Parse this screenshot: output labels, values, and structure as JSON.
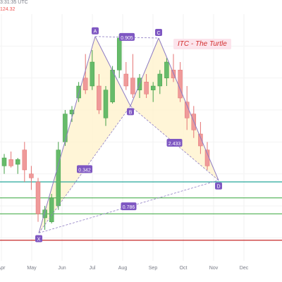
{
  "header": {
    "timestamp": "3:31:35 UTC",
    "price_fragment": "124.32"
  },
  "title_tag": "ITC - The Turtle",
  "colors": {
    "up": "#66bb6a",
    "down": "#ef9a9a",
    "pattern_fill": "#fff3cd",
    "pattern_line": "#8e7cc3",
    "label_bg": "#7e57c2",
    "teal": "#26a69a",
    "green": "#4caf50",
    "red": "#c62828"
  },
  "chart_data": {
    "type": "candlestick",
    "title": "ITC - The Turtle",
    "x_ticks": [
      "Apr",
      "May",
      "Jun",
      "Jul",
      "Aug",
      "Sep",
      "Oct",
      "Nov",
      "Dec"
    ],
    "candles": [
      {
        "open": 170,
        "high": 185,
        "low": 160,
        "close": 180
      },
      {
        "open": 178,
        "high": 188,
        "low": 168,
        "close": 170
      },
      {
        "open": 172,
        "high": 180,
        "low": 160,
        "close": 178
      },
      {
        "open": 190,
        "high": 200,
        "low": 150,
        "close": 165
      },
      {
        "open": 160,
        "high": 170,
        "low": 140,
        "close": 155
      },
      {
        "open": 150,
        "high": 155,
        "low": 100,
        "close": 110
      },
      {
        "open": 105,
        "high": 120,
        "low": 90,
        "close": 115
      },
      {
        "open": 100,
        "high": 135,
        "low": 98,
        "close": 130
      },
      {
        "open": 120,
        "high": 200,
        "low": 115,
        "close": 190
      },
      {
        "open": 200,
        "high": 240,
        "low": 195,
        "close": 235
      },
      {
        "open": 235,
        "high": 245,
        "low": 225,
        "close": 240
      },
      {
        "open": 255,
        "high": 275,
        "low": 250,
        "close": 270
      },
      {
        "open": 280,
        "high": 310,
        "low": 260,
        "close": 265
      },
      {
        "open": 270,
        "high": 315,
        "low": 265,
        "close": 300
      },
      {
        "open": 270,
        "high": 285,
        "low": 235,
        "close": 240
      },
      {
        "open": 230,
        "high": 270,
        "low": 220,
        "close": 265
      },
      {
        "open": 250,
        "high": 295,
        "low": 248,
        "close": 290
      },
      {
        "open": 290,
        "high": 335,
        "low": 280,
        "close": 330
      },
      {
        "open": 285,
        "high": 300,
        "low": 265,
        "close": 270
      },
      {
        "open": 280,
        "high": 310,
        "low": 255,
        "close": 260
      },
      {
        "open": 265,
        "high": 285,
        "low": 255,
        "close": 280
      },
      {
        "open": 275,
        "high": 285,
        "low": 255,
        "close": 260
      },
      {
        "open": 265,
        "high": 275,
        "low": 250,
        "close": 270
      },
      {
        "open": 270,
        "high": 290,
        "low": 260,
        "close": 285
      },
      {
        "open": 280,
        "high": 305,
        "low": 270,
        "close": 300
      },
      {
        "open": 290,
        "high": 310,
        "low": 275,
        "close": 280
      },
      {
        "open": 290,
        "high": 300,
        "low": 250,
        "close": 255
      },
      {
        "open": 250,
        "high": 270,
        "low": 215,
        "close": 230
      },
      {
        "open": 235,
        "high": 245,
        "low": 205,
        "close": 215
      },
      {
        "open": 210,
        "high": 225,
        "low": 185,
        "close": 195
      },
      {
        "open": 190,
        "high": 200,
        "low": 165,
        "close": 170
      }
    ],
    "harmonic_pattern": {
      "points": [
        {
          "label": "X",
          "time": 5.5,
          "price": 86
        },
        {
          "label": "A",
          "time": 13.5,
          "price": 332
        },
        {
          "label": "B",
          "time": 18.5,
          "price": 245
        },
        {
          "label": "C",
          "time": 22.5,
          "price": 330
        },
        {
          "label": "D",
          "time": 31.0,
          "price": 152
        }
      ],
      "display_labels": [
        "A",
        "C",
        "B",
        "X",
        "D"
      ],
      "ratios": [
        {
          "value": "0.905",
          "between": "A-C"
        },
        {
          "value": "0.342",
          "between": "X-B"
        },
        {
          "value": "2.433",
          "between": "B-D"
        },
        {
          "value": "0.786",
          "between": "X-D"
        }
      ]
    },
    "horizontal_levels": [
      {
        "price": 150,
        "color": "teal"
      },
      {
        "price": 130,
        "color": "green"
      },
      {
        "price": 110,
        "color": "green"
      },
      {
        "price": 77,
        "color": "red"
      }
    ],
    "xlim": [
      0,
      40
    ],
    "ylim": [
      60,
      360
    ]
  }
}
